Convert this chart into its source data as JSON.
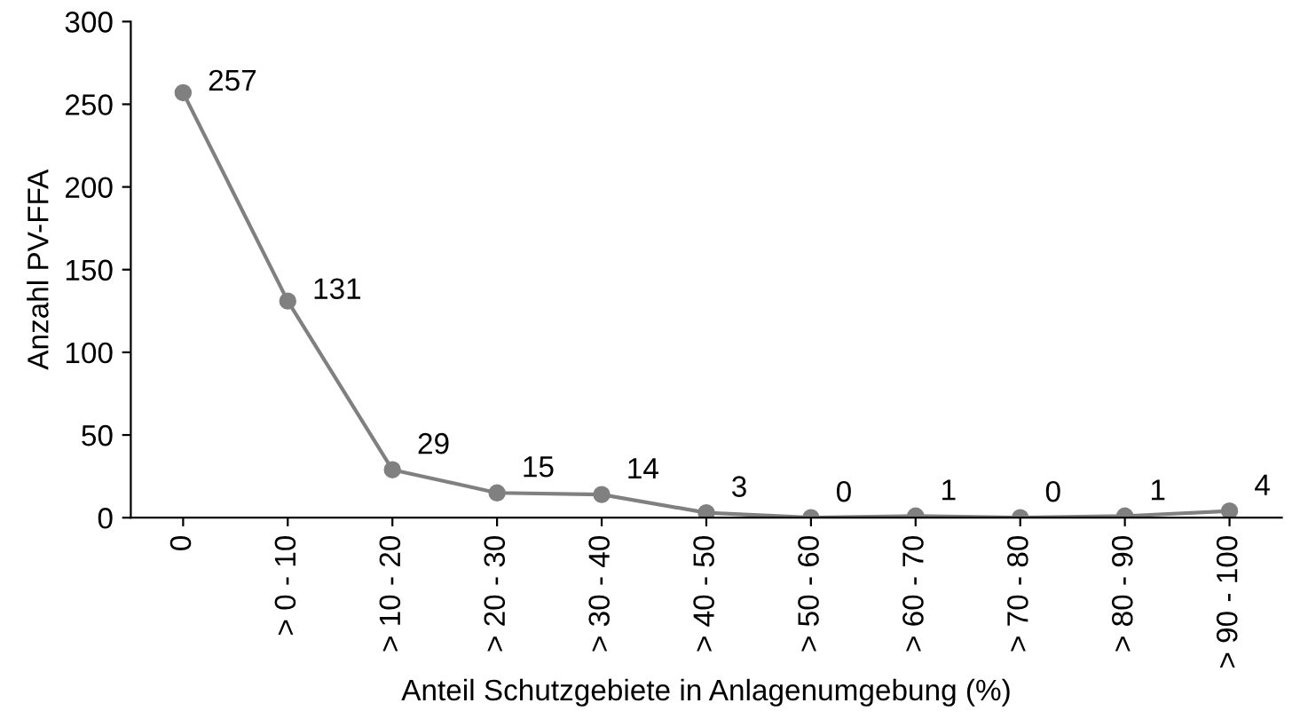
{
  "chart_data": {
    "type": "line",
    "xlabel": "Anteil Schutzgebiete in Anlagenumgebung (%)",
    "ylabel": "Anzahl PV-FFA",
    "categories": [
      "0",
      "> 0 - 10",
      "> 10 - 20",
      "> 20 - 30",
      "> 30 - 40",
      "> 40 - 50",
      "> 50 - 60",
      "> 60 - 70",
      "> 70 - 80",
      "> 80 - 90",
      "> 90 - 100"
    ],
    "series": [
      {
        "color": "#808080",
        "values": [
          257,
          131,
          29,
          15,
          14,
          3,
          0,
          1,
          0,
          1,
          4
        ]
      }
    ],
    "ylim": [
      0,
      300
    ],
    "yticks": [
      0,
      50,
      100,
      150,
      200,
      250,
      300
    ],
    "marker": "circle",
    "line_style": "solid",
    "data_labels": true,
    "grid": false,
    "legend": false
  }
}
